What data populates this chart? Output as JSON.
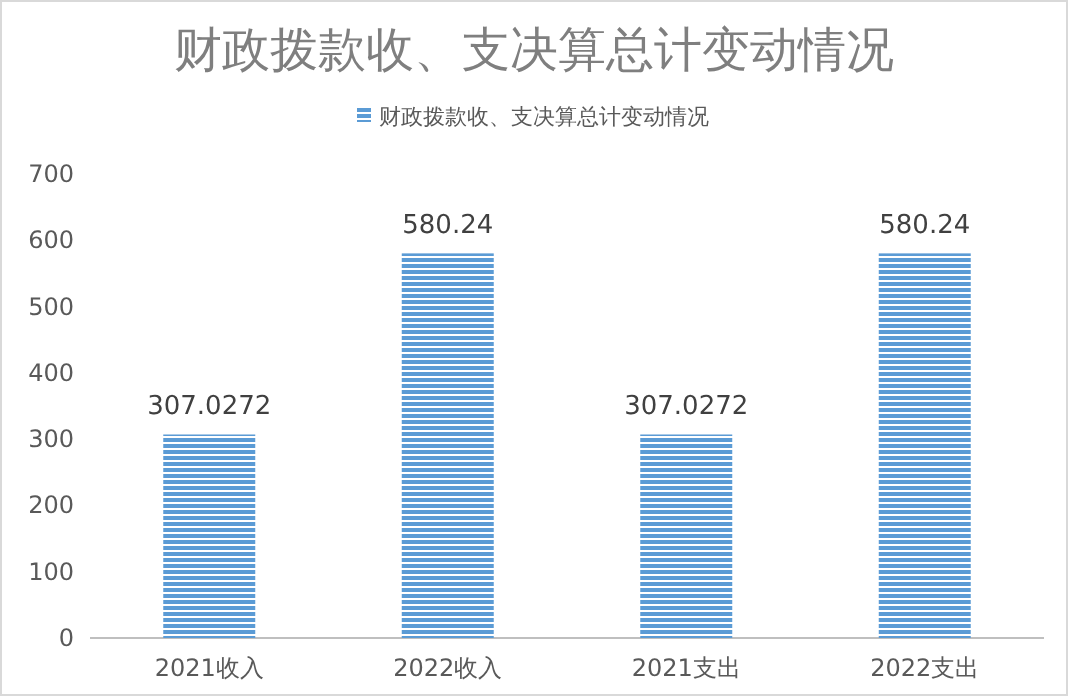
{
  "chart_data": {
    "type": "bar",
    "title": "财政拨款收、支决算总计变动情况",
    "categories": [
      "2021收入",
      "2022收入",
      "2021支出",
      "2022支出"
    ],
    "series": [
      {
        "name": "财政拨款收、支决算总计变动情况",
        "color": "#5b9bd5",
        "values": [
          307.0272,
          580.24,
          307.0272,
          580.24
        ]
      }
    ],
    "ylim": [
      0,
      700
    ],
    "yticks": [
      0,
      100,
      200,
      300,
      400,
      500,
      600,
      700
    ],
    "grid": false,
    "legend": "top",
    "data_labels": true
  }
}
